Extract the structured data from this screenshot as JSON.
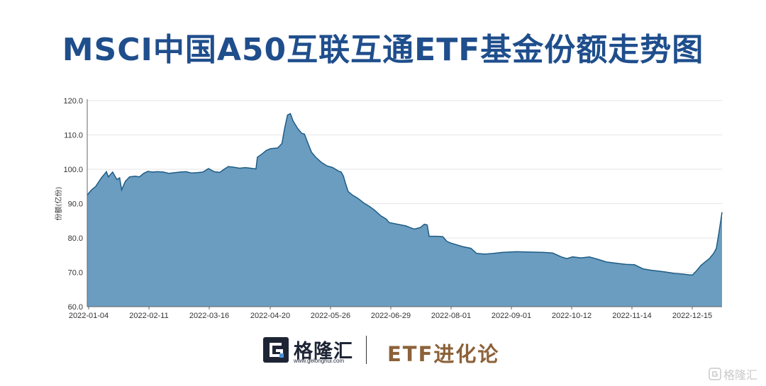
{
  "title": "MSCI中国A50互联互通ETF基金份额走势图",
  "chart_data": {
    "type": "area",
    "title": "MSCI中国A50互联互通ETF基金份额走势图",
    "ylabel": "份额(亿份)",
    "ylim": [
      60,
      120
    ],
    "yticks": [
      "60.0",
      "70.0",
      "80.0",
      "90.0",
      "100.0",
      "110.0",
      "120.0"
    ],
    "xticks": [
      "2022-01-04",
      "2022-02-11",
      "2022-03-16",
      "2022-04-20",
      "2022-05-26",
      "2022-06-29",
      "2022-08-01",
      "2022-09-01",
      "2022-10-12",
      "2022-11-14",
      "2022-12-15"
    ],
    "grid": "horizontal",
    "fill_color": "#6b9dc0",
    "line_color": "#1e5c85",
    "points": [
      [
        0,
        92.5
      ],
      [
        1.5,
        94
      ],
      [
        3,
        95
      ],
      [
        5,
        97.5
      ],
      [
        6,
        98.5
      ],
      [
        6.8,
        99.3
      ],
      [
        7.5,
        97.8
      ],
      [
        9,
        99.2
      ],
      [
        10.5,
        97
      ],
      [
        11.5,
        97.5
      ],
      [
        12.2,
        94
      ],
      [
        13.5,
        96.5
      ],
      [
        15,
        97.8
      ],
      [
        17,
        98
      ],
      [
        18.5,
        97.8
      ],
      [
        20,
        98.8
      ],
      [
        21.5,
        99.4
      ],
      [
        23,
        99.2
      ],
      [
        25,
        99.3
      ],
      [
        27,
        99.2
      ],
      [
        29,
        98.8
      ],
      [
        31,
        99
      ],
      [
        33,
        99.2
      ],
      [
        35,
        99.3
      ],
      [
        37,
        98.9
      ],
      [
        39,
        99
      ],
      [
        41,
        99.2
      ],
      [
        43,
        100.2
      ],
      [
        45,
        99.3
      ],
      [
        47,
        99.1
      ],
      [
        48.5,
        100
      ],
      [
        50,
        100.8
      ],
      [
        52,
        100.6
      ],
      [
        54,
        100.3
      ],
      [
        56,
        100.5
      ],
      [
        58,
        100.3
      ],
      [
        59.8,
        100.1
      ],
      [
        60.3,
        103.5
      ],
      [
        62,
        104.5
      ],
      [
        63.5,
        105.5
      ],
      [
        65,
        106
      ],
      [
        67.5,
        106.2
      ],
      [
        69,
        107.5
      ],
      [
        70,
        112
      ],
      [
        71,
        115.8
      ],
      [
        72,
        116.2
      ],
      [
        73,
        114
      ],
      [
        74.5,
        112
      ],
      [
        76,
        110.5
      ],
      [
        77,
        110.2
      ],
      [
        78.5,
        107
      ],
      [
        79.5,
        105
      ],
      [
        81,
        103.5
      ],
      [
        83,
        102
      ],
      [
        85,
        101
      ],
      [
        87,
        100.5
      ],
      [
        89,
        99.5
      ],
      [
        90,
        99.2
      ],
      [
        90.8,
        98
      ],
      [
        91.5,
        96
      ],
      [
        92.5,
        93.5
      ],
      [
        94,
        92.5
      ],
      [
        96,
        91.5
      ],
      [
        98,
        90.2
      ],
      [
        100,
        89.2
      ],
      [
        102,
        88
      ],
      [
        104,
        86.5
      ],
      [
        106,
        85.5
      ],
      [
        107,
        84.5
      ],
      [
        110,
        84
      ],
      [
        113,
        83.5
      ],
      [
        114.5,
        83
      ],
      [
        116,
        82.6
      ],
      [
        118,
        83
      ],
      [
        119.5,
        84
      ],
      [
        120.5,
        83.8
      ],
      [
        121.2,
        80.5
      ],
      [
        124,
        80.5
      ],
      [
        126,
        80.4
      ],
      [
        127.5,
        79
      ],
      [
        129,
        78.5
      ],
      [
        131,
        78
      ],
      [
        133,
        77.5
      ],
      [
        136,
        77
      ],
      [
        138,
        75.5
      ],
      [
        141,
        75.3
      ],
      [
        144,
        75.5
      ],
      [
        147,
        75.8
      ],
      [
        152,
        76
      ],
      [
        157,
        75.9
      ],
      [
        162,
        75.8
      ],
      [
        165,
        75.6
      ],
      [
        168,
        74.5
      ],
      [
        170,
        74
      ],
      [
        172,
        74.5
      ],
      [
        175,
        74.2
      ],
      [
        178,
        74.5
      ],
      [
        181,
        73.8
      ],
      [
        184,
        73
      ],
      [
        187,
        72.7
      ],
      [
        189,
        72.5
      ],
      [
        191,
        72.3
      ],
      [
        194,
        72.2
      ],
      [
        197,
        71
      ],
      [
        200,
        70.6
      ],
      [
        203,
        70.3
      ],
      [
        205,
        70.1
      ],
      [
        208,
        69.7
      ],
      [
        211,
        69.5
      ],
      [
        213,
        69.3
      ],
      [
        214.5,
        69.2
      ],
      [
        216,
        70.5
      ],
      [
        217.5,
        72
      ],
      [
        219,
        73
      ],
      [
        220.5,
        74
      ],
      [
        222,
        75.5
      ],
      [
        223,
        77
      ],
      [
        224,
        82
      ],
      [
        225,
        87.5
      ]
    ]
  },
  "footer": {
    "logo_letter": "G",
    "brand_name": "格隆汇",
    "brand_url": "www.gelonghui.com",
    "partner": "ETF进化论",
    "watermark": "格隆汇"
  }
}
